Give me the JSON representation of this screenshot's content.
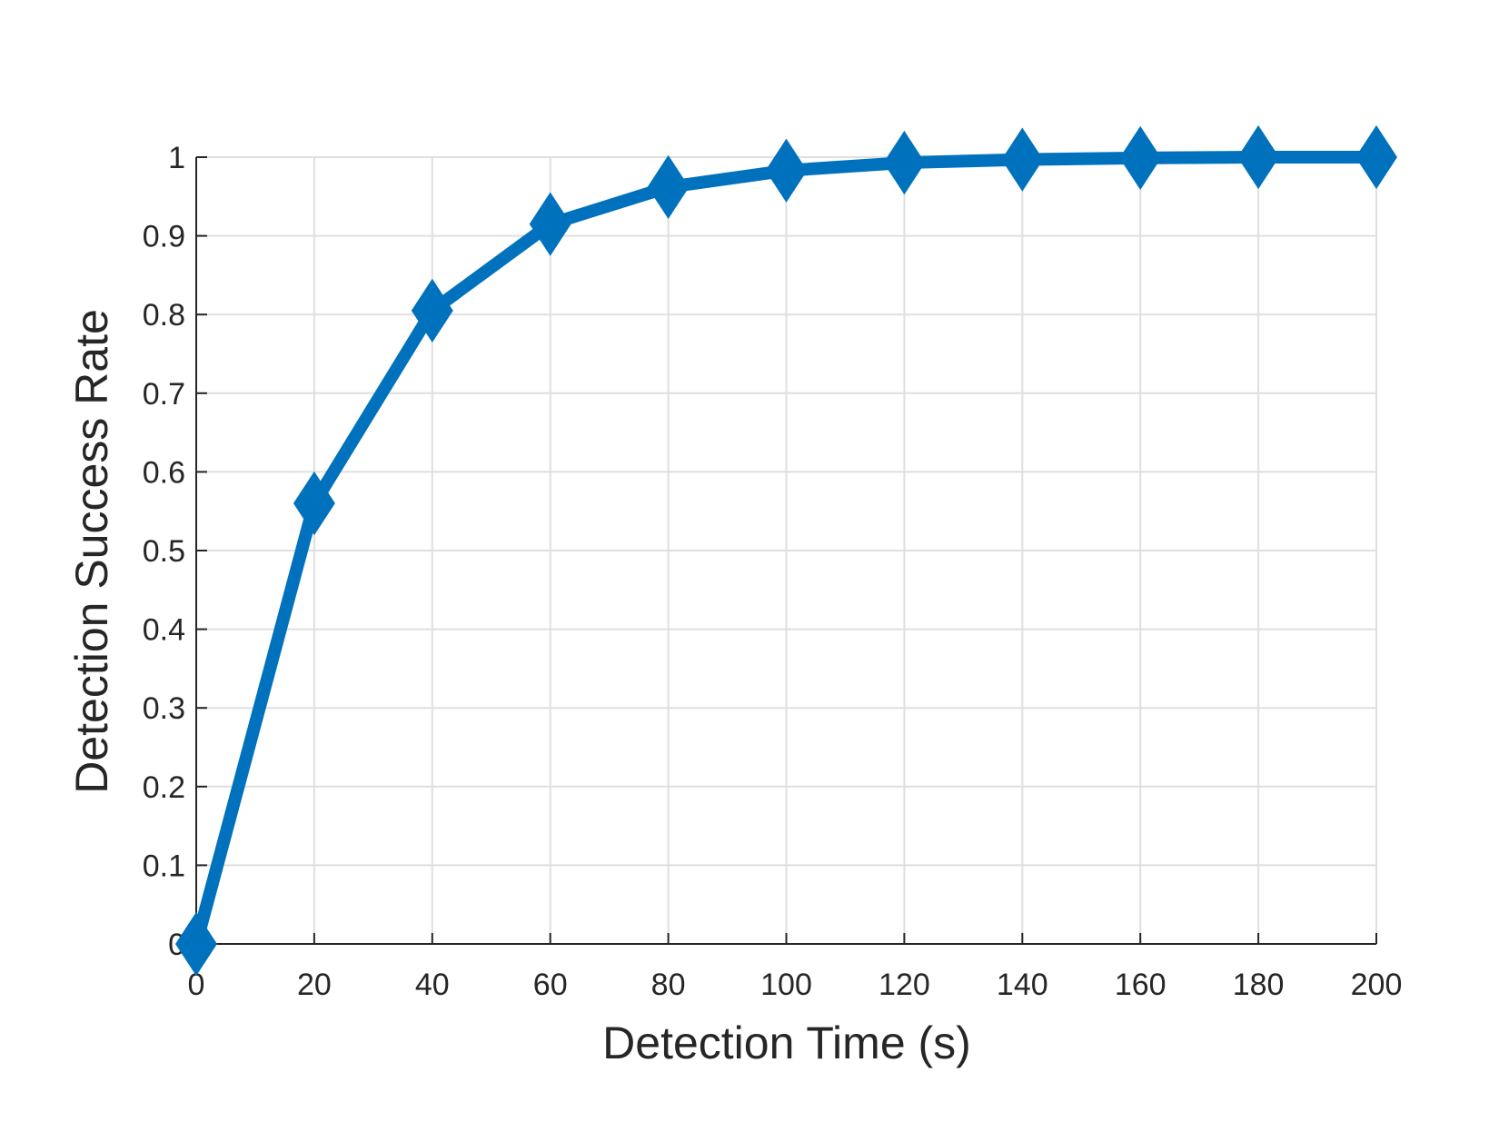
{
  "chart_data": {
    "type": "line",
    "title": "",
    "xlabel": "Detection Time (s)",
    "ylabel": "Detection Success Rate",
    "x": [
      0,
      20,
      40,
      60,
      80,
      100,
      120,
      140,
      160,
      180,
      200
    ],
    "series": [
      {
        "values": [
          0,
          0.56,
          0.805,
          0.915,
          0.962,
          0.983,
          0.993,
          0.997,
          0.999,
          1.0,
          1.0
        ],
        "color": "#0072BD",
        "marker": "diamond"
      }
    ],
    "xlim": [
      0,
      200
    ],
    "ylim": [
      0,
      1
    ],
    "xticks": [
      "0",
      "20",
      "40",
      "60",
      "80",
      "100",
      "120",
      "140",
      "160",
      "180",
      "200"
    ],
    "yticks": [
      "0",
      "0.1",
      "0.2",
      "0.3",
      "0.4",
      "0.5",
      "0.6",
      "0.7",
      "0.8",
      "0.9",
      "1"
    ],
    "grid": true,
    "legend": "none"
  }
}
